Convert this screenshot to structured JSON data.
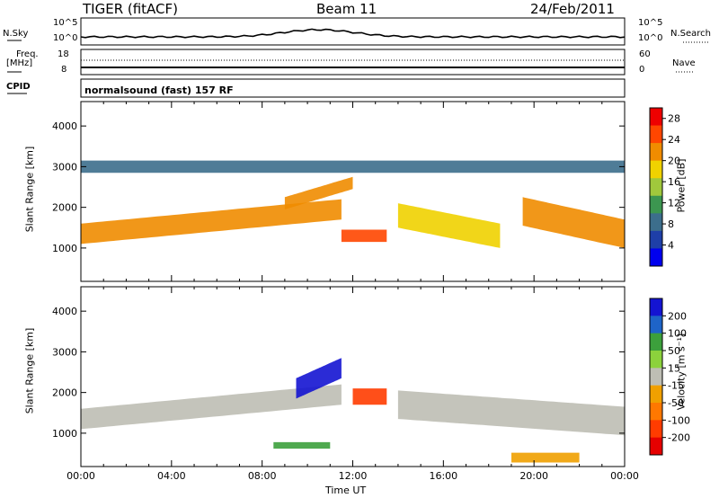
{
  "header": {
    "station": "TIGER (fitACF)",
    "beam": "Beam 11",
    "date": "24/Feb/2011"
  },
  "params_panel": {
    "nsky_label": "N.Sky",
    "nsky_ticks": [
      "10^5",
      "10^0"
    ],
    "nsearch_label": "N.Search",
    "nsearch_ticks": [
      "10^5",
      "10^0"
    ],
    "freq_label_1": "Freq.",
    "freq_label_2": "[MHz]",
    "freq_ticks": [
      "18",
      "8"
    ],
    "nave_label": "Nave",
    "nave_ticks": [
      "60",
      "0"
    ],
    "cpid_label": "CPID",
    "cpid_text": "normalsound (fast) 157 RF"
  },
  "axes": {
    "xlabel": "Time UT",
    "xticks": [
      "00:00",
      "04:00",
      "08:00",
      "12:00",
      "16:00",
      "20:00",
      "00:00"
    ],
    "xlim_hours": [
      0,
      24
    ],
    "ylabel": "Slant Range [km]",
    "yticks": [
      1000,
      2000,
      3000,
      4000
    ],
    "ylim": [
      180,
      4600
    ]
  },
  "colors": {
    "power": [
      "#0000ee",
      "#1e3fa8",
      "#3c6e8c",
      "#3c9650",
      "#a0c83c",
      "#f0d200",
      "#f08c00",
      "#ff4600",
      "#ee0000"
    ],
    "velocity": [
      "#1414d2",
      "#1e64c8",
      "#3ca03c",
      "#8cd23c",
      "#bebeb4",
      "#f0a000",
      "#ff7800",
      "#ff3c00",
      "#e60000"
    ]
  },
  "chart_data": [
    {
      "type": "heatmap",
      "title": "",
      "xlabel": "Time UT",
      "ylabel": "Slant Range [km]",
      "ylim": [
        180,
        4600
      ],
      "colorbar": {
        "label": "Power [dB]",
        "ticks": [
          4,
          8,
          12,
          16,
          20,
          24,
          28
        ],
        "range": [
          0,
          30
        ]
      },
      "regions": [
        {
          "t": [
            0,
            11.5
          ],
          "r_center": [
            1350,
            1950
          ],
          "r_halfwidth": 250,
          "value": 24
        },
        {
          "t": [
            9,
            12
          ],
          "r_center": [
            2100,
            2600
          ],
          "r_halfwidth": 150,
          "value": 22
        },
        {
          "t": [
            11.5,
            13.5
          ],
          "r_center": [
            1300,
            1300
          ],
          "r_halfwidth": 150,
          "value": 28
        },
        {
          "t": [
            14,
            18.5
          ],
          "r_center": [
            1800,
            1300
          ],
          "r_halfwidth": 300,
          "value": 18
        },
        {
          "t": [
            19.5,
            24
          ],
          "r_center": [
            1900,
            1350
          ],
          "r_halfwidth": 350,
          "value": 24
        },
        {
          "t": [
            0,
            24
          ],
          "r_center": [
            3000,
            3000
          ],
          "r_halfwidth": 150,
          "value": 8
        }
      ]
    },
    {
      "type": "heatmap",
      "title": "",
      "xlabel": "Time UT",
      "ylabel": "Slant Range [km]",
      "ylim": [
        180,
        4600
      ],
      "colorbar": {
        "label": "Velocity [m s⁻¹]",
        "ticks": [
          200,
          100,
          50,
          15,
          -15,
          -50,
          -100,
          -200
        ],
        "range": [
          -250,
          250
        ]
      },
      "regions": [
        {
          "t": [
            0,
            11.5
          ],
          "r_center": [
            1350,
            1950
          ],
          "r_halfwidth": 250,
          "value": 0
        },
        {
          "t": [
            9.5,
            11.5
          ],
          "r_center": [
            2100,
            2600
          ],
          "r_halfwidth": 250,
          "value": 200
        },
        {
          "t": [
            12,
            13.5
          ],
          "r_center": [
            1900,
            1900
          ],
          "r_halfwidth": 200,
          "value": -200
        },
        {
          "t": [
            14,
            24
          ],
          "r_center": [
            1700,
            1300
          ],
          "r_halfwidth": 350,
          "value": 0
        },
        {
          "t": [
            19,
            22
          ],
          "r_center": [
            400,
            400
          ],
          "r_halfwidth": 120,
          "value": -50
        },
        {
          "t": [
            8.5,
            11
          ],
          "r_center": [
            700,
            700
          ],
          "r_halfwidth": 80,
          "value": 50
        }
      ]
    }
  ]
}
